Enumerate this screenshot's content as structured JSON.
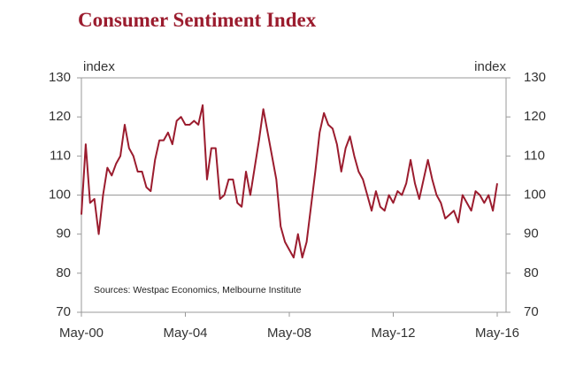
{
  "chart_data": {
    "type": "line",
    "title": "Consumer Sentiment Index",
    "y_label": "index",
    "y2_label": "index",
    "annotation": "Sources: Westpac Economics, Melbourne Institute",
    "x": [
      "May-00",
      "Jul-00",
      "Sep-00",
      "Nov-00",
      "Jan-01",
      "Mar-01",
      "May-01",
      "Jul-01",
      "Sep-01",
      "Nov-01",
      "Jan-02",
      "Mar-02",
      "May-02",
      "Jul-02",
      "Sep-02",
      "Nov-02",
      "Jan-03",
      "Mar-03",
      "May-03",
      "Jul-03",
      "Sep-03",
      "Nov-03",
      "Jan-04",
      "Mar-04",
      "May-04",
      "Jul-04",
      "Sep-04",
      "Nov-04",
      "Jan-05",
      "Mar-05",
      "May-05",
      "Jul-05",
      "Sep-05",
      "Nov-05",
      "Jan-06",
      "Mar-06",
      "May-06",
      "Jul-06",
      "Sep-06",
      "Nov-06",
      "Jan-07",
      "Mar-07",
      "May-07",
      "Jul-07",
      "Sep-07",
      "Nov-07",
      "Jan-08",
      "Mar-08",
      "May-08",
      "Jul-08",
      "Sep-08",
      "Nov-08",
      "Jan-09",
      "Mar-09",
      "May-09",
      "Jul-09",
      "Sep-09",
      "Nov-09",
      "Jan-10",
      "Mar-10",
      "May-10",
      "Jul-10",
      "Sep-10",
      "Nov-10",
      "Jan-11",
      "Mar-11",
      "May-11",
      "Jul-11",
      "Sep-11",
      "Nov-11",
      "Jan-12",
      "Mar-12",
      "May-12",
      "Jul-12",
      "Sep-12",
      "Nov-12",
      "Jan-13",
      "Mar-13",
      "May-13",
      "Jul-13",
      "Sep-13",
      "Nov-13",
      "Jan-14",
      "Mar-14",
      "May-14",
      "Jul-14",
      "Sep-14",
      "Nov-14",
      "Jan-15",
      "Mar-15",
      "May-15",
      "Jul-15",
      "Sep-15",
      "Nov-15",
      "Jan-16",
      "Mar-16",
      "May-16"
    ],
    "series": [
      {
        "name": "Consumer Sentiment Index",
        "color": "#9b1c2e",
        "values": [
          95,
          113,
          98,
          99,
          90,
          100,
          107,
          105,
          108,
          110,
          118,
          112,
          110,
          106,
          106,
          102,
          101,
          109,
          114,
          114,
          116,
          113,
          119,
          120,
          118,
          118,
          119,
          118,
          123,
          104,
          112,
          112,
          99,
          100,
          104,
          104,
          98,
          97,
          106,
          100,
          107,
          114,
          122,
          116,
          110,
          104,
          92,
          88,
          86,
          84,
          90,
          84,
          88,
          97,
          106,
          116,
          121,
          118,
          117,
          113,
          106,
          112,
          115,
          110,
          106,
          104,
          100,
          96,
          101,
          97,
          96,
          100,
          98,
          101,
          100,
          103,
          109,
          103,
          99,
          104,
          109,
          104,
          100,
          98,
          94,
          95,
          96,
          93,
          100,
          98,
          96,
          101,
          100,
          98,
          100,
          96,
          103
        ]
      }
    ],
    "xticks": [
      "May-00",
      "May-04",
      "May-08",
      "May-12",
      "May-16"
    ],
    "ylim": [
      70,
      130
    ],
    "yticks": [
      70,
      80,
      90,
      100,
      110,
      120,
      130
    ],
    "y2lim": [
      70,
      130
    ],
    "y2ticks": [
      70,
      80,
      90,
      100,
      110,
      120,
      130
    ],
    "hline": 100
  }
}
